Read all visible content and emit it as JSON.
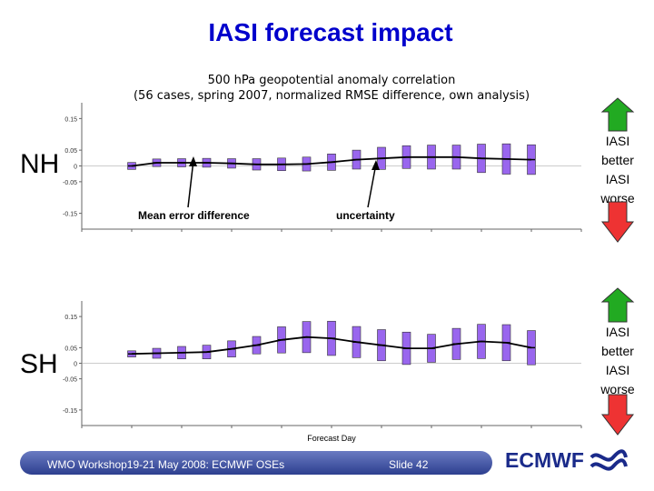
{
  "slide": {
    "title": "IASI forecast impact",
    "subtitle_line1": "500 hPa geopotential anomaly correlation",
    "subtitle_line2": "(56 cases, spring 2007, normalized RMSE difference, own analysis)",
    "footer_text": "WMO Workshop19-21 May 2008: ECMWF OSEs",
    "slide_number": "Slide 42",
    "brand": "ECMWF",
    "side_label_better": "IASI better",
    "side_label_worse": "IASI worse",
    "colors": {
      "title": "#0000cc",
      "box": "#9966ee",
      "arrow_up": "#22aa22",
      "arrow_down": "#ee3333"
    }
  },
  "chart_data": [
    {
      "type": "line",
      "region": "NH",
      "x": [
        1,
        1.5,
        2,
        2.5,
        3,
        3.5,
        4,
        4.5,
        5,
        5.5,
        6,
        6.5,
        7,
        7.5,
        8,
        8.5,
        9
      ],
      "series": [
        {
          "name": "Mean error difference",
          "values": [
            0.0,
            0.01,
            0.01,
            0.01,
            0.008,
            0.005,
            0.005,
            0.006,
            0.012,
            0.02,
            0.024,
            0.028,
            0.028,
            0.028,
            0.024,
            0.022,
            0.02
          ]
        },
        {
          "name": "uncertainty",
          "half_width": [
            0.011,
            0.012,
            0.013,
            0.014,
            0.015,
            0.018,
            0.02,
            0.022,
            0.026,
            0.03,
            0.035,
            0.036,
            0.038,
            0.038,
            0.045,
            0.048,
            0.047
          ]
        }
      ],
      "annotations": [
        "Mean error difference",
        "uncertainty"
      ],
      "ylim": [
        -0.2,
        0.2
      ],
      "y_tick_labels": [
        "0.15",
        "0.05",
        "0",
        "-0.05",
        "-0.15"
      ],
      "xlim": [
        0,
        10
      ],
      "xlabel": ""
    },
    {
      "type": "line",
      "region": "SH",
      "x": [
        1,
        1.5,
        2,
        2.5,
        3,
        3.5,
        4,
        4.5,
        5,
        5.5,
        6,
        6.5,
        7,
        7.5,
        8,
        8.5,
        9
      ],
      "series": [
        {
          "name": "Mean error difference",
          "values": [
            0.03,
            0.032,
            0.034,
            0.036,
            0.046,
            0.058,
            0.075,
            0.084,
            0.08,
            0.068,
            0.058,
            0.048,
            0.048,
            0.062,
            0.07,
            0.066,
            0.05
          ]
        },
        {
          "name": "uncertainty",
          "half_width": [
            0.01,
            0.016,
            0.02,
            0.022,
            0.026,
            0.028,
            0.042,
            0.05,
            0.055,
            0.05,
            0.05,
            0.052,
            0.045,
            0.05,
            0.055,
            0.058,
            0.055
          ]
        }
      ],
      "ylim": [
        -0.2,
        0.2
      ],
      "y_tick_labels": [
        "0.15",
        "0.05",
        "0",
        "-0.05",
        "-0.15"
      ],
      "xlim": [
        0,
        10
      ],
      "xlabel": "Forecast Day"
    }
  ]
}
